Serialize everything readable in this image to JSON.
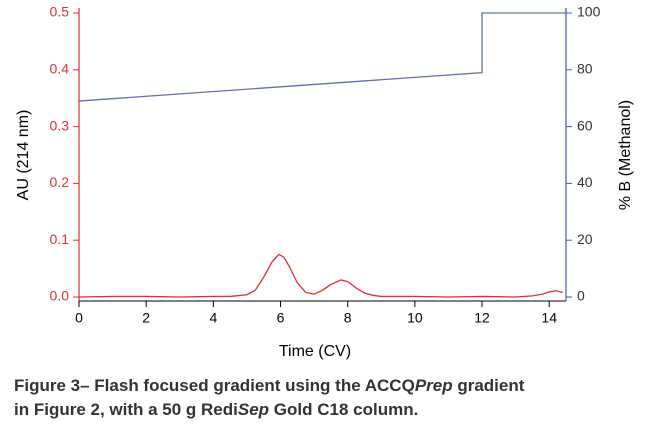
{
  "chart_data": {
    "type": "line",
    "xlabel": "Time (CV)",
    "ylabel": "AU (214 nm)",
    "y2label": "% B (Methanol)",
    "xlim": [
      0,
      14.5
    ],
    "xticks": [
      0,
      2,
      4,
      6,
      8,
      10,
      12,
      14
    ],
    "ylim": [
      0,
      0.5
    ],
    "yticks": [
      {
        "value": 0,
        "label": "0.0"
      },
      0.1,
      0.2,
      0.3,
      0.4,
      0.5
    ],
    "y2lim": [
      0,
      100
    ],
    "y2ticks": [
      0,
      20,
      40,
      60,
      80,
      100
    ],
    "y_axis_color": "#e0302c",
    "y2_axis_color": "#4a5aa8",
    "series": [
      {
        "name": "AU (214 nm)",
        "color": "#e0302c",
        "x": [
          0,
          1,
          2,
          3,
          4,
          4.5,
          5,
          5.25,
          5.5,
          5.75,
          5.95,
          6.1,
          6.25,
          6.5,
          6.75,
          7,
          7.25,
          7.5,
          7.8,
          8,
          8.25,
          8.5,
          8.75,
          9,
          10,
          11,
          12,
          13,
          13.5,
          13.8,
          14,
          14.2,
          14.4
        ],
        "values": [
          0,
          0.001,
          0.001,
          0,
          0.001,
          0.001,
          0.004,
          0.012,
          0.035,
          0.062,
          0.075,
          0.07,
          0.055,
          0.025,
          0.008,
          0.005,
          0.012,
          0.022,
          0.03,
          0.027,
          0.016,
          0.007,
          0.003,
          0.001,
          0.001,
          0,
          0.001,
          0,
          0.002,
          0.005,
          0.009,
          0.011,
          0.008
        ]
      },
      {
        "name": "% B (Methanol)",
        "color": "#6070b0",
        "axis": "y2",
        "x": [
          0,
          12,
          12,
          14.5
        ],
        "values": [
          69,
          79,
          100,
          100
        ]
      }
    ]
  },
  "caption": {
    "line1": [
      "Figure 3– Flash focused gradient using the ACCQ",
      "Prep",
      " gradient"
    ],
    "line2": [
      "in Figure 2, with a 50 g Redi",
      "Sep",
      " Gold C18 column."
    ]
  }
}
